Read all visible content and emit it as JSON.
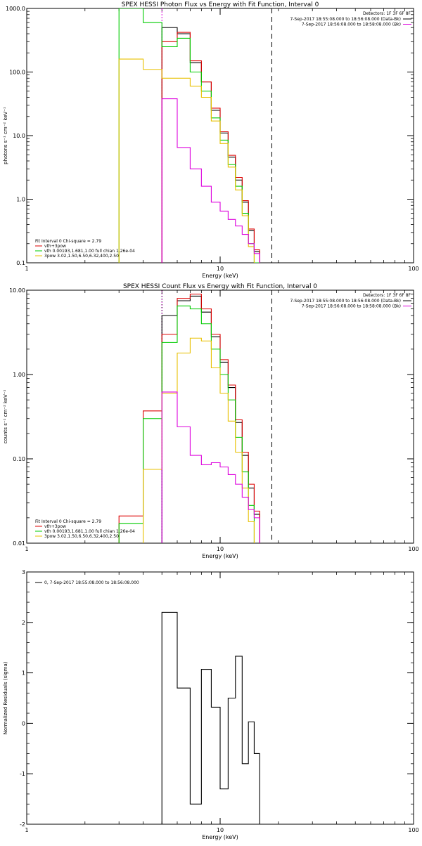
{
  "colors": {
    "black": "#000000",
    "red": "#dd0000",
    "green": "#00cc00",
    "yellow": "#e8c000",
    "magenta": "#dd00dd"
  },
  "chart_data": [
    {
      "type": "line",
      "title": "SPEX HESSI Photon Flux vs Energy with Fit Function, Interval 0",
      "xlabel": "Energy (keV)",
      "ylabel": "photons s⁻¹ cm⁻² keV⁻¹",
      "xscale": "log",
      "yscale": "log",
      "xlim": [
        1,
        100
      ],
      "ylim": [
        0.1,
        1000
      ],
      "xticks": [
        1,
        10,
        100
      ],
      "xtick_labels": [
        "1",
        "10",
        "100"
      ],
      "yticks": [
        0.1,
        1,
        10,
        100,
        1000
      ],
      "ytick_labels": [
        "0.1",
        "1.0",
        "10.0",
        "100.0",
        "1000.0"
      ],
      "edges": [
        3,
        4,
        5,
        6,
        7,
        8,
        9,
        10,
        11,
        12,
        13,
        14,
        15,
        16,
        17,
        18
      ],
      "series": [
        {
          "name": "",
          "style": "step",
          "color": "#000000",
          "values": [
            null,
            null,
            500,
            400,
            140,
            70,
            25,
            11,
            4.6,
            2.0,
            0.9,
            0.32,
            0.15,
            null,
            null
          ]
        },
        {
          "name": "vth+3pow",
          "style": "step",
          "color": "#dd0000",
          "values": [
            null,
            null,
            300,
            420,
            150,
            70,
            27,
            11.5,
            4.9,
            2.2,
            0.95,
            0.34,
            0.16,
            null,
            null
          ]
        },
        {
          "name": "vth 0.00193,1.681,1.00  full chian 1.26e-04",
          "style": "step",
          "color": "#00cc00",
          "values": [
            2000,
            600,
            250,
            340,
            100,
            50,
            19,
            8.5,
            3.5,
            1.6,
            0.6,
            0.2,
            0.1,
            null,
            null
          ]
        },
        {
          "name": "3pow 3.02,1.50,6.50,6.32,400,2.50",
          "style": "step",
          "color": "#e8c000",
          "values": [
            160,
            110,
            80,
            80,
            60,
            40,
            17,
            7.5,
            3.2,
            1.4,
            0.55,
            0.18,
            null,
            null,
            null
          ]
        },
        {
          "name": "",
          "style": "step",
          "color": "#dd00dd",
          "values": [
            null,
            null,
            38,
            6.5,
            3.0,
            1.6,
            0.9,
            0.65,
            0.48,
            0.38,
            0.28,
            0.2,
            0.14,
            null,
            null
          ]
        }
      ],
      "vlines": [
        {
          "x": 5,
          "color": "#dd00dd",
          "dash": "2,2"
        },
        {
          "x": 18.5,
          "color": "#000000",
          "dash": "7,5"
        }
      ],
      "legend_tr": {
        "title": "Detectors: 1F 3F 6F 8F",
        "entries": [
          {
            "text": "7-Sep-2017 18:55:08.000 to 18:56:08.000 (Data-Bk)",
            "color": "#000000"
          },
          {
            "text": "7-Sep-2017 18:56:08.000 to 18:58:08.000 (Bk)",
            "color": "#dd00dd"
          }
        ]
      },
      "legend_bl": {
        "title": "Fit Interval 0   Chi-square = 2.79",
        "entries": [
          {
            "text": "vth+3pow",
            "color": "#dd0000"
          },
          {
            "text": "vth 0.00193,1.681,1.00  full chian 1.26e-04",
            "color": "#00cc00"
          },
          {
            "text": "3pow 3.02,1.50,6.50,6.32,400,2.50",
            "color": "#e8c000"
          }
        ]
      }
    },
    {
      "type": "line",
      "title": "SPEX HESSI Count Flux vs Energy with Fit Function, Interval 0",
      "xlabel": "Energy (keV)",
      "ylabel": "counts s⁻¹ cm⁻² keV⁻¹",
      "xscale": "log",
      "yscale": "log",
      "xlim": [
        1,
        100
      ],
      "ylim": [
        0.01,
        10
      ],
      "xticks": [
        1,
        10,
        100
      ],
      "xtick_labels": [
        "1",
        "10",
        "100"
      ],
      "yticks": [
        0.01,
        0.1,
        1,
        10
      ],
      "ytick_labels": [
        "0.01",
        "0.10",
        "1.00",
        "10.00"
      ],
      "edges": [
        3,
        4,
        5,
        6,
        7,
        8,
        9,
        10,
        11,
        12,
        13,
        14,
        15,
        16,
        17,
        18
      ],
      "series": [
        {
          "name": "",
          "style": "step",
          "color": "#000000",
          "values": [
            null,
            null,
            5.0,
            7.5,
            8.5,
            5.5,
            2.8,
            1.4,
            0.7,
            0.27,
            0.11,
            0.045,
            0.022,
            null,
            null
          ]
        },
        {
          "name": "vth+3pow",
          "style": "step",
          "color": "#dd0000",
          "values": [
            0.021,
            0.37,
            3.0,
            8.0,
            9.0,
            6.0,
            3.0,
            1.5,
            0.75,
            0.29,
            0.12,
            0.05,
            0.024,
            null,
            null
          ]
        },
        {
          "name": "vth 0.00193,1.681,1.00  full chian 1.26e-04",
          "style": "step",
          "color": "#00cc00",
          "values": [
            0.017,
            0.3,
            2.4,
            6.5,
            6.0,
            4.0,
            2.0,
            1.0,
            0.5,
            0.18,
            0.07,
            0.028,
            null,
            null,
            null
          ]
        },
        {
          "name": "3pow 3.02,1.50,6.50,6.32,400,2.50",
          "style": "step",
          "color": "#e8c000",
          "values": [
            null,
            0.075,
            0.6,
            1.8,
            2.7,
            2.5,
            1.2,
            0.6,
            0.28,
            0.12,
            0.045,
            0.018,
            null,
            null,
            null
          ]
        },
        {
          "name": "",
          "style": "step",
          "color": "#dd00dd",
          "values": [
            null,
            null,
            0.62,
            0.24,
            0.11,
            0.085,
            0.09,
            0.08,
            0.065,
            0.05,
            0.035,
            0.025,
            0.02,
            null,
            null
          ]
        }
      ],
      "vlines": [
        {
          "x": 5,
          "color": "#dd00dd",
          "dash": "2,2"
        },
        {
          "x": 5,
          "color": "#000000",
          "dash": "1,3"
        },
        {
          "x": 18.5,
          "color": "#000000",
          "dash": "7,5"
        }
      ],
      "legend_tr": {
        "title": "Detectors: 1F 3F 6F 8F",
        "entries": [
          {
            "text": "7-Sep-2017 18:55:08.000 to 18:56:08.000 (Data-Bk)",
            "color": "#000000"
          },
          {
            "text": "7-Sep-2017 18:56:08.000 to 18:58:08.000 (Bk)",
            "color": "#dd00dd"
          }
        ]
      },
      "legend_bl": {
        "title": "Fit Interval 0   Chi-square = 2.79",
        "entries": [
          {
            "text": "vth+3pow",
            "color": "#dd0000"
          },
          {
            "text": "vth 0.00193,1.681,1.00  full chian 1.26e-04",
            "color": "#00cc00"
          },
          {
            "text": "3pow 3.02,1.50,6.50,6.32,400,2.50",
            "color": "#e8c000"
          }
        ]
      }
    },
    {
      "type": "line",
      "title": "",
      "xlabel": "Energy (keV)",
      "ylabel": "Normalized Residuals (sigma)",
      "xscale": "log",
      "yscale": "linear",
      "xlim": [
        1,
        100
      ],
      "ylim": [
        -2,
        3
      ],
      "xticks": [
        1,
        10,
        100
      ],
      "xtick_labels": [
        "1",
        "10",
        "100"
      ],
      "yticks": [
        -2,
        -1,
        0,
        1,
        2,
        3
      ],
      "ytick_labels": [
        "-2",
        "-1",
        "0",
        "1",
        "2",
        "3"
      ],
      "edges": [
        5,
        6,
        7,
        8,
        9,
        10,
        11,
        12,
        13,
        14,
        15,
        16,
        17,
        18
      ],
      "series": [
        {
          "name": "0,  7-Sep-2017 18:55:08.000 to 18:56:08.000",
          "style": "step",
          "color": "#000000",
          "values": [
            2.2,
            0.7,
            -1.6,
            1.07,
            0.32,
            -1.3,
            0.5,
            1.33,
            -0.8,
            0.03,
            -0.6,
            null,
            null
          ]
        }
      ],
      "vlines": [],
      "legend_tr": null,
      "legend_bl": null,
      "legend_tl": {
        "entries": [
          {
            "text": "0,  7-Sep-2017 18:55:08.000 to 18:56:08.000",
            "color": "#000000"
          }
        ]
      }
    }
  ]
}
